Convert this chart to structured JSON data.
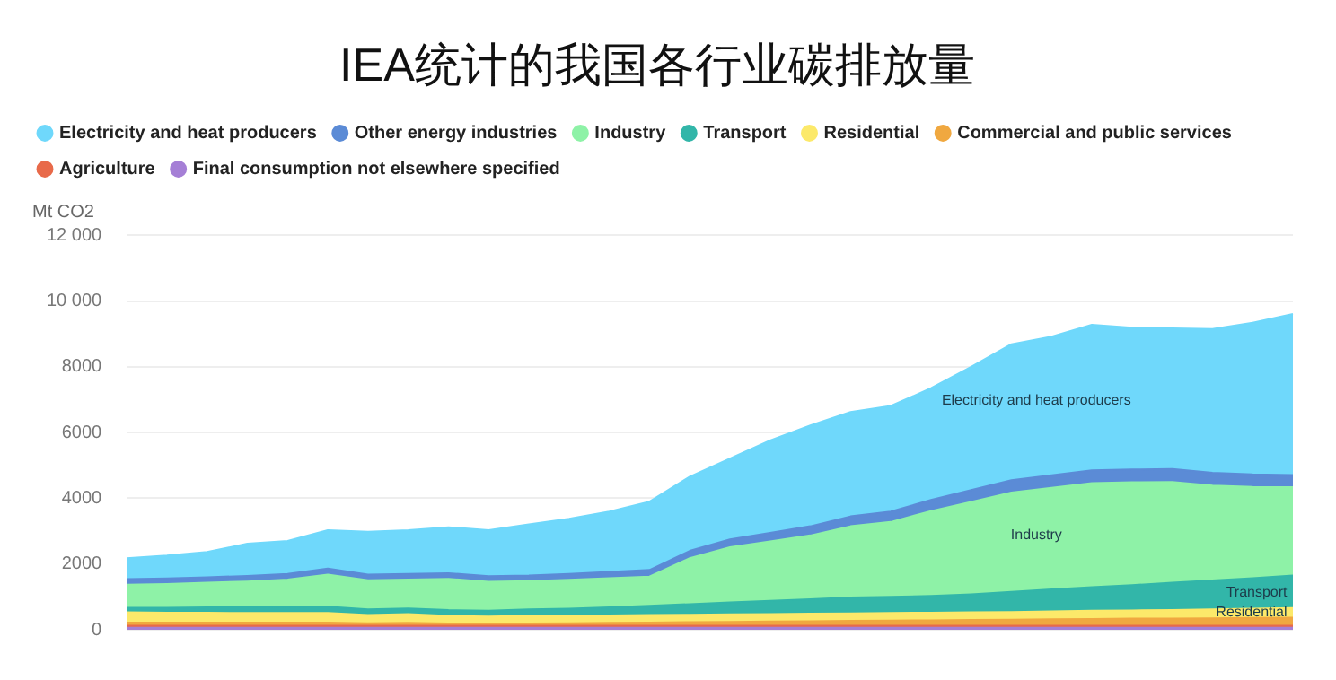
{
  "chart_data": {
    "type": "area",
    "stacked": true,
    "title": "IEA统计的我国各行业碳排放量",
    "ylabel": "Mt CO2",
    "categories": [
      null,
      null,
      null,
      null,
      null,
      null,
      null,
      null,
      null,
      null,
      null,
      null,
      null,
      null,
      null,
      null,
      null,
      null,
      null,
      null,
      null,
      null,
      null,
      null,
      null,
      null,
      null,
      null,
      null,
      null
    ],
    "ylim": [
      0,
      12000
    ],
    "yticks": [
      0,
      2000,
      4000,
      6000,
      8000,
      {
        "value": 10000,
        "label": "10 000"
      },
      {
        "value": 12000,
        "label": "12 000"
      }
    ],
    "grid": "y",
    "legend": "top left",
    "tick_labels": "y",
    "marker": "none",
    "series": [
      {
        "name": "Final consumption not elsewhere specified",
        "color": "#a57fd6",
        "values": [
          60,
          60,
          60,
          60,
          60,
          60,
          60,
          60,
          60,
          60,
          60,
          60,
          60,
          60,
          60,
          60,
          60,
          60,
          60,
          60,
          60,
          60,
          60,
          60,
          60,
          60,
          60,
          60,
          60,
          60
        ]
      },
      {
        "name": "Agriculture",
        "color": "#e86a4a",
        "values": [
          60,
          60,
          60,
          60,
          60,
          60,
          60,
          60,
          60,
          60,
          60,
          60,
          60,
          60,
          60,
          60,
          60,
          60,
          60,
          60,
          60,
          60,
          60,
          60,
          60,
          60,
          60,
          60,
          60,
          60
        ]
      },
      {
        "name": "Commercial and public services",
        "color": "#f0a840",
        "values": [
          100,
          100,
          100,
          100,
          100,
          100,
          80,
          90,
          70,
          60,
          70,
          80,
          90,
          100,
          110,
          120,
          130,
          140,
          150,
          160,
          170,
          180,
          190,
          200,
          210,
          220,
          220,
          230,
          240,
          250
        ]
      },
      {
        "name": "Residential",
        "color": "#fce96a",
        "values": [
          310,
          300,
          300,
          290,
          290,
          290,
          250,
          270,
          230,
          220,
          230,
          230,
          230,
          230,
          230,
          230,
          230,
          230,
          230,
          230,
          230,
          230,
          230,
          240,
          250,
          250,
          260,
          270,
          280,
          290
        ]
      },
      {
        "name": "Transport",
        "color": "#32b6a9",
        "values": [
          140,
          150,
          160,
          170,
          180,
          190,
          170,
          170,
          180,
          180,
          200,
          210,
          240,
          280,
          320,
          360,
          400,
          440,
          480,
          490,
          510,
          550,
          610,
          670,
          720,
          770,
          830,
          880,
          930,
          990
        ]
      },
      {
        "name": "Industry",
        "color": "#8ef2a7",
        "values": [
          700,
          720,
          750,
          790,
          840,
          980,
          890,
          880,
          950,
          880,
          860,
          880,
          890,
          890,
          1400,
          1680,
          1810,
          1940,
          2170,
          2280,
          2580,
          2810,
          3030,
          3090,
          3160,
          3130,
          3070,
          2890,
          2780,
          2690
        ]
      },
      {
        "name": "Other energy industries",
        "color": "#5b8bd6",
        "values": [
          170,
          170,
          170,
          170,
          170,
          180,
          170,
          170,
          170,
          170,
          170,
          180,
          190,
          200,
          220,
          240,
          260,
          280,
          300,
          320,
          340,
          360,
          370,
          380,
          390,
          390,
          390,
          390,
          380,
          370
        ]
      },
      {
        "name": "Electricity and heat producers",
        "color": "#6fd8fb",
        "values": [
          640,
          700,
          770,
          980,
          1000,
          1170,
          1300,
          1330,
          1400,
          1400,
          1560,
          1680,
          1840,
          2080,
          2260,
          2460,
          2810,
          3070,
          3180,
          3210,
          3400,
          3750,
          4140,
          4220,
          4430,
          4310,
          4280,
          4370,
          4610,
          4900
        ]
      }
    ],
    "annotations": [
      "Electricity and heat producers",
      "Industry",
      "Transport",
      "Residential"
    ]
  }
}
